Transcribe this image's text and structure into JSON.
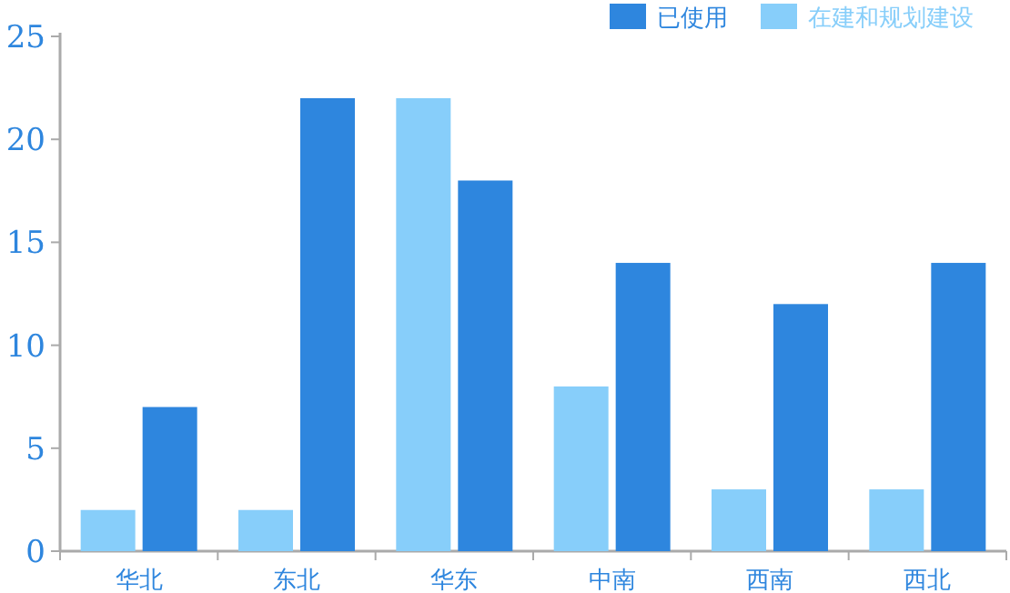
{
  "chart_data": {
    "type": "bar",
    "categories": [
      "华北",
      "东北",
      "华东",
      "中南",
      "西南",
      "西北"
    ],
    "series": [
      {
        "name": "在建和规划建设",
        "color": "#87cefa",
        "values": [
          2,
          2,
          22,
          8,
          3,
          3
        ]
      },
      {
        "name": "已使用",
        "color": "#2e86de",
        "values": [
          7,
          22,
          18,
          14,
          12,
          14
        ]
      }
    ],
    "ylim": [
      0,
      25
    ],
    "yticks": [
      0,
      5,
      10,
      15,
      20,
      25
    ],
    "grid": false,
    "legend": "top right"
  }
}
